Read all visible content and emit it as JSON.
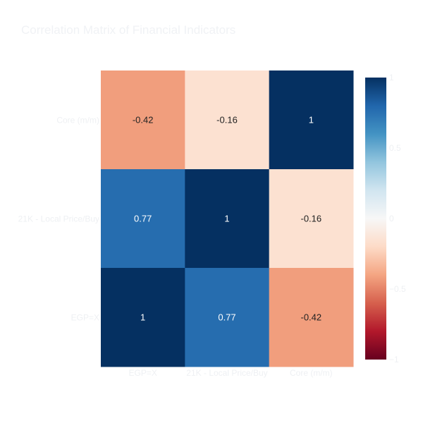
{
  "chart_data": {
    "type": "heatmap",
    "title": "Correlation Matrix of Financial Indicators",
    "x_categories": [
      "EGP=X",
      "21K - Local Price/Buy",
      "Core (m/m)"
    ],
    "y_categories": [
      "Core (m/m)",
      "21K - Local Price/Buy",
      "EGP=X"
    ],
    "z": [
      [
        -0.42,
        -0.16,
        1
      ],
      [
        0.77,
        1,
        -0.16
      ],
      [
        1,
        0.77,
        -0.42
      ]
    ],
    "cell_labels": [
      [
        "-0.42",
        "-0.16",
        "1"
      ],
      [
        "0.77",
        "1",
        "-0.16"
      ],
      [
        "1",
        "0.77",
        "-0.42"
      ]
    ],
    "colorscale": "RdBu",
    "zrange": [
      -1,
      1
    ],
    "colorbar_ticks": [
      {
        "value": 1,
        "label": "1"
      },
      {
        "value": 0.5,
        "label": "0.5"
      },
      {
        "value": 0,
        "label": "0"
      },
      {
        "value": -0.5,
        "label": "−0.5"
      },
      {
        "value": -1,
        "label": "−1"
      }
    ],
    "colors": {
      "title": "#f0f2f5",
      "tick_labels": "#eef0f3",
      "cell_text_dark": "#222222",
      "cell_text_light": "#ffffff"
    }
  }
}
